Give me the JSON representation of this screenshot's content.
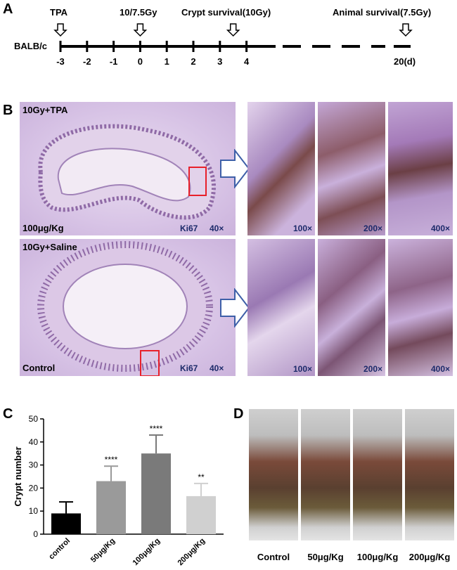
{
  "panels": {
    "a": "A",
    "b": "B",
    "c": "C",
    "d": "D"
  },
  "timeline": {
    "strain": "BALB/c",
    "events": [
      {
        "label": "TPA",
        "day": -3
      },
      {
        "label": "10/7.5Gy",
        "day": 0
      },
      {
        "label": "Crypt survival(10Gy)",
        "day": 3.5
      },
      {
        "label": "Animal survival(7.5Gy)",
        "day": 20
      }
    ],
    "ticks": [
      "-3",
      "-2",
      "-1",
      "0",
      "1",
      "2",
      "3",
      "4"
    ],
    "end_label": "20(d)"
  },
  "histology": {
    "row1": {
      "treatment": "10Gy+TPA",
      "dose": "100μg/Kg",
      "stain": "Ki67",
      "mag_main": "40×"
    },
    "row2": {
      "treatment": "10Gy+Saline",
      "dose": "Control",
      "stain": "Ki67",
      "mag_main": "40×"
    },
    "zoom_mags": [
      "100×",
      "200×",
      "400×"
    ],
    "box_color": "#e8202a",
    "arrow_color": "#3d5fa8"
  },
  "chart_data": {
    "type": "bar",
    "ylabel": "Crypt number",
    "ylim": [
      0,
      50
    ],
    "yticks": [
      0,
      10,
      20,
      30,
      40,
      50
    ],
    "categories": [
      "control",
      "50μg/Kg",
      "100μg/Kg",
      "200μg/Kg"
    ],
    "values": [
      9,
      23,
      35,
      16.5
    ],
    "errors": [
      5,
      6.5,
      8,
      5.5
    ],
    "significance": [
      "",
      "****",
      "****",
      "**"
    ],
    "colors": [
      "#000000",
      "#9a9a9a",
      "#7a7a7a",
      "#d0d0d0"
    ]
  },
  "photos": {
    "labels": [
      "Control",
      "50μg/Kg",
      "100μg/Kg",
      "200μg/Kg"
    ]
  }
}
